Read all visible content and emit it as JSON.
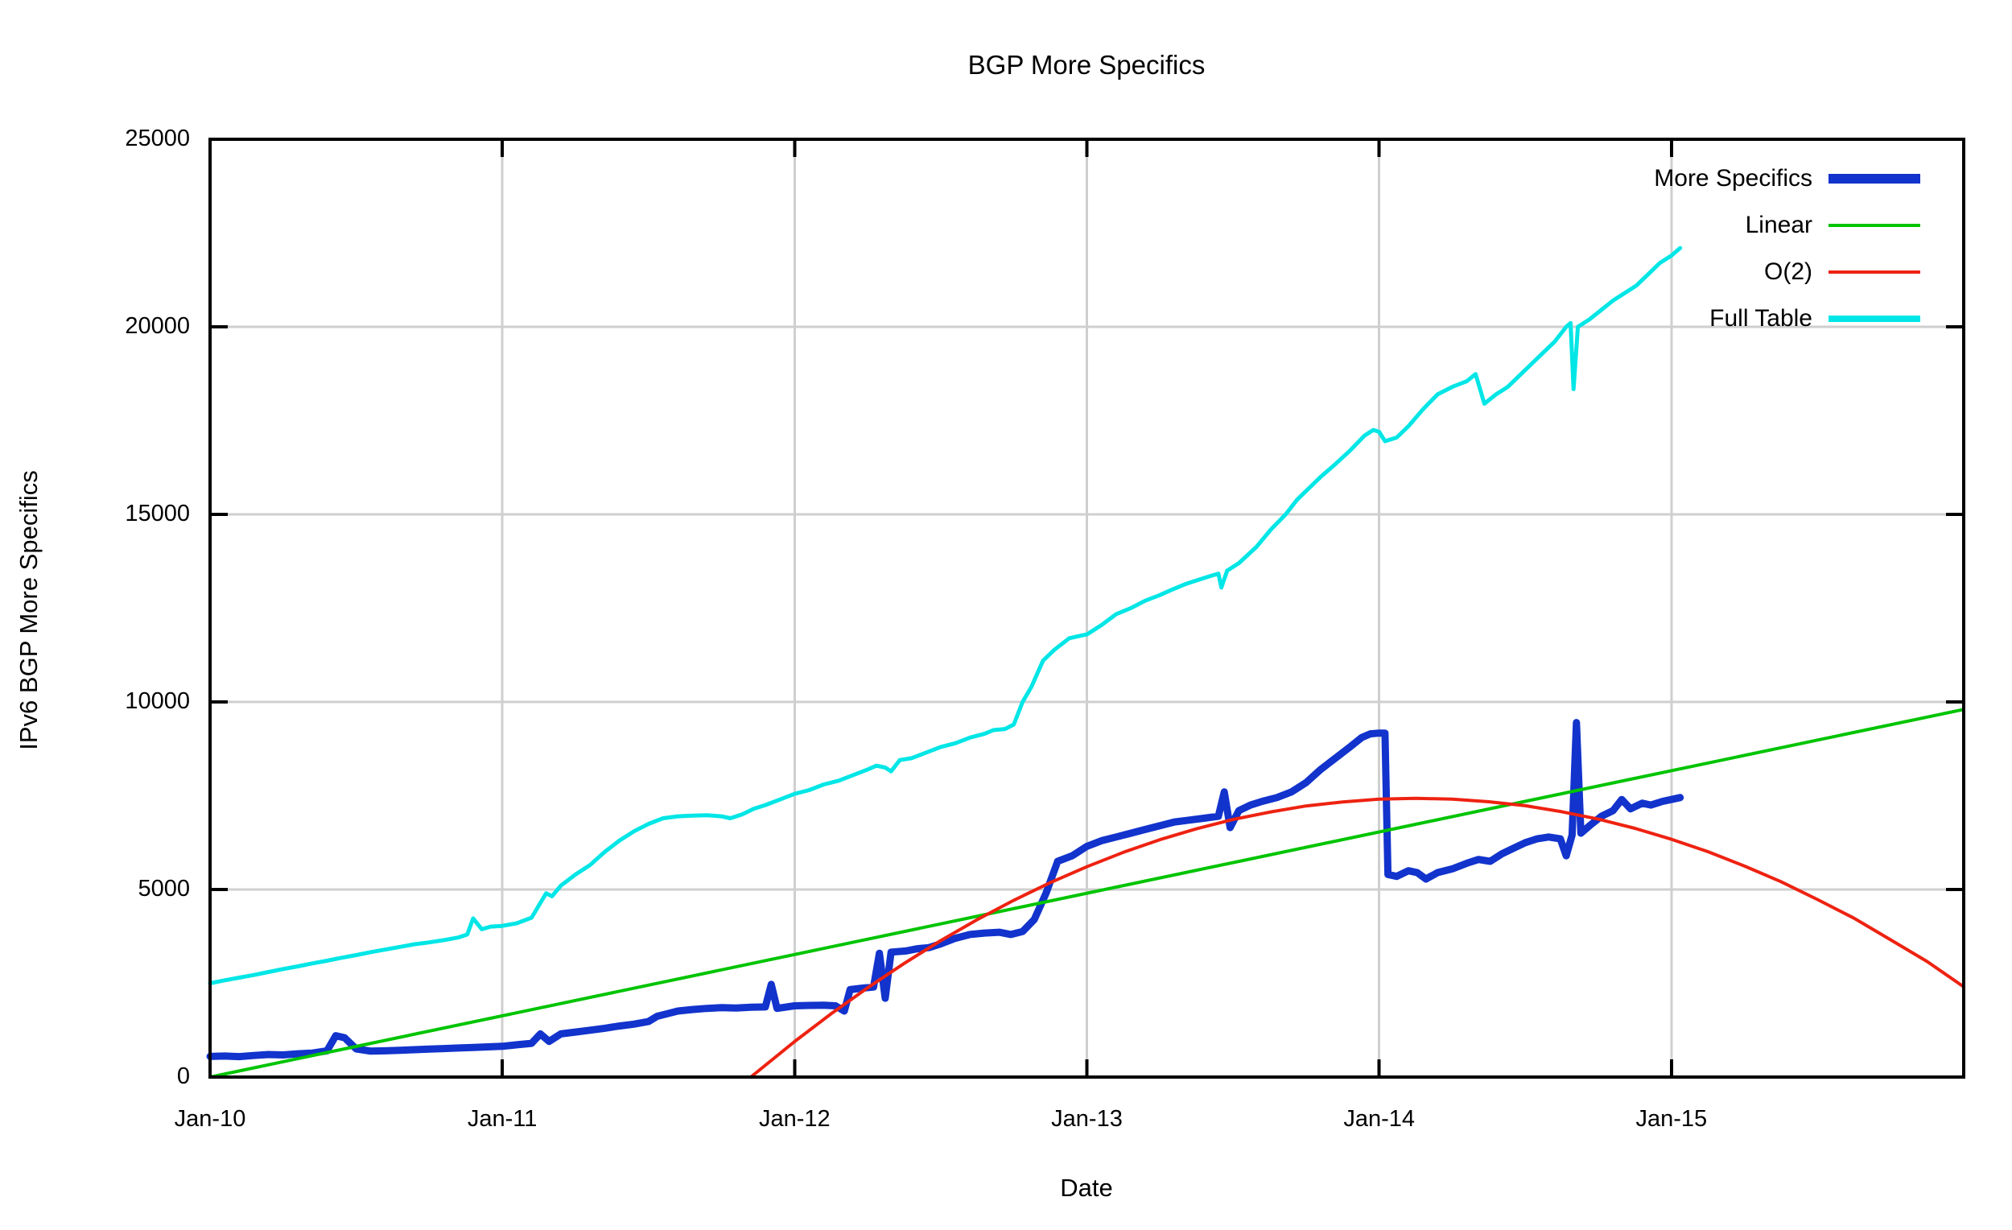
{
  "title": "BGP More Specifics",
  "axis": {
    "xlabel": "Date",
    "ylabel": "IPv6 BGP More Specifics",
    "x_tick_labels": [
      "Jan-10",
      "Jan-11",
      "Jan-12",
      "Jan-13",
      "Jan-14",
      "Jan-15"
    ],
    "x_tick_years": [
      2010,
      2011,
      2012,
      2013,
      2014,
      2015
    ],
    "y_tick_labels": [
      "0",
      "5000",
      "10000",
      "15000",
      "20000",
      "25000"
    ],
    "y_tick_values": [
      0,
      5000,
      10000,
      15000,
      20000,
      25000
    ],
    "x_range": [
      2010.0,
      2016.0
    ],
    "y_range": [
      0,
      25000
    ],
    "grid": true
  },
  "colors": {
    "more_specifics": "#1233cc",
    "linear": "#00c400",
    "o2": "#ee2211",
    "full_table": "#00e6e6",
    "grid": "#cfcfcf",
    "border": "#000000",
    "background": "#ffffff"
  },
  "legend": {
    "position": "top-right-inside",
    "entries": [
      {
        "label": "More Specifics",
        "series": "more_specifics",
        "color": "#1233cc",
        "thickness": 12
      },
      {
        "label": "Linear",
        "series": "linear",
        "color": "#00c400",
        "thickness": 4
      },
      {
        "label": "O(2)",
        "series": "o2",
        "color": "#ee2211",
        "thickness": 4
      },
      {
        "label": "Full Table",
        "series": "full_table",
        "color": "#00e6e6",
        "thickness": 8
      }
    ]
  },
  "chart_data": {
    "type": "line",
    "title": "BGP More Specifics",
    "xlabel": "Date",
    "ylabel": "IPv6 BGP More Specifics",
    "xlim": [
      2010.0,
      2016.0
    ],
    "ylim": [
      0,
      25000
    ],
    "x_unit": "decimal-year",
    "series": [
      {
        "name": "More Specifics",
        "color": "#1233cc",
        "width": 9,
        "points": [
          [
            2010.0,
            550
          ],
          [
            2010.05,
            560
          ],
          [
            2010.1,
            545
          ],
          [
            2010.15,
            575
          ],
          [
            2010.2,
            600
          ],
          [
            2010.25,
            590
          ],
          [
            2010.3,
            620
          ],
          [
            2010.35,
            640
          ],
          [
            2010.4,
            700
          ],
          [
            2010.43,
            1100
          ],
          [
            2010.46,
            1050
          ],
          [
            2010.5,
            750
          ],
          [
            2010.55,
            690
          ],
          [
            2010.6,
            700
          ],
          [
            2010.65,
            715
          ],
          [
            2010.7,
            730
          ],
          [
            2010.75,
            745
          ],
          [
            2010.8,
            760
          ],
          [
            2010.85,
            775
          ],
          [
            2010.9,
            790
          ],
          [
            2010.95,
            805
          ],
          [
            2011.0,
            820
          ],
          [
            2011.05,
            860
          ],
          [
            2011.1,
            900
          ],
          [
            2011.13,
            1150
          ],
          [
            2011.16,
            950
          ],
          [
            2011.2,
            1150
          ],
          [
            2011.25,
            1200
          ],
          [
            2011.3,
            1250
          ],
          [
            2011.35,
            1300
          ],
          [
            2011.4,
            1360
          ],
          [
            2011.45,
            1410
          ],
          [
            2011.5,
            1480
          ],
          [
            2011.53,
            1620
          ],
          [
            2011.57,
            1700
          ],
          [
            2011.6,
            1760
          ],
          [
            2011.65,
            1800
          ],
          [
            2011.7,
            1830
          ],
          [
            2011.75,
            1850
          ],
          [
            2011.8,
            1840
          ],
          [
            2011.85,
            1860
          ],
          [
            2011.9,
            1870
          ],
          [
            2011.92,
            2470
          ],
          [
            2011.94,
            1830
          ],
          [
            2012.0,
            1900
          ],
          [
            2012.05,
            1910
          ],
          [
            2012.1,
            1915
          ],
          [
            2012.14,
            1900
          ],
          [
            2012.17,
            1760
          ],
          [
            2012.19,
            2330
          ],
          [
            2012.23,
            2370
          ],
          [
            2012.27,
            2400
          ],
          [
            2012.29,
            3300
          ],
          [
            2012.31,
            2100
          ],
          [
            2012.33,
            3330
          ],
          [
            2012.38,
            3360
          ],
          [
            2012.42,
            3420
          ],
          [
            2012.46,
            3450
          ],
          [
            2012.5,
            3550
          ],
          [
            2012.55,
            3700
          ],
          [
            2012.6,
            3800
          ],
          [
            2012.65,
            3840
          ],
          [
            2012.7,
            3860
          ],
          [
            2012.74,
            3800
          ],
          [
            2012.78,
            3880
          ],
          [
            2012.82,
            4200
          ],
          [
            2012.86,
            4900
          ],
          [
            2012.9,
            5750
          ],
          [
            2012.95,
            5900
          ],
          [
            2013.0,
            6150
          ],
          [
            2013.05,
            6300
          ],
          [
            2013.1,
            6400
          ],
          [
            2013.15,
            6500
          ],
          [
            2013.2,
            6600
          ],
          [
            2013.25,
            6700
          ],
          [
            2013.3,
            6800
          ],
          [
            2013.35,
            6850
          ],
          [
            2013.4,
            6900
          ],
          [
            2013.45,
            6950
          ],
          [
            2013.47,
            7600
          ],
          [
            2013.49,
            6650
          ],
          [
            2013.52,
            7100
          ],
          [
            2013.56,
            7250
          ],
          [
            2013.6,
            7350
          ],
          [
            2013.65,
            7450
          ],
          [
            2013.7,
            7600
          ],
          [
            2013.75,
            7850
          ],
          [
            2013.8,
            8200
          ],
          [
            2013.85,
            8500
          ],
          [
            2013.9,
            8800
          ],
          [
            2013.94,
            9050
          ],
          [
            2013.97,
            9150
          ],
          [
            2014.0,
            9170
          ],
          [
            2014.02,
            9170
          ],
          [
            2014.03,
            5400
          ],
          [
            2014.06,
            5350
          ],
          [
            2014.1,
            5500
          ],
          [
            2014.13,
            5450
          ],
          [
            2014.16,
            5280
          ],
          [
            2014.2,
            5450
          ],
          [
            2014.25,
            5550
          ],
          [
            2014.3,
            5700
          ],
          [
            2014.34,
            5800
          ],
          [
            2014.38,
            5750
          ],
          [
            2014.42,
            5950
          ],
          [
            2014.46,
            6100
          ],
          [
            2014.5,
            6250
          ],
          [
            2014.54,
            6350
          ],
          [
            2014.58,
            6400
          ],
          [
            2014.62,
            6350
          ],
          [
            2014.64,
            5900
          ],
          [
            2014.66,
            6450
          ],
          [
            2014.675,
            9450
          ],
          [
            2014.69,
            6500
          ],
          [
            2014.72,
            6700
          ],
          [
            2014.76,
            6950
          ],
          [
            2014.8,
            7100
          ],
          [
            2014.83,
            7400
          ],
          [
            2014.86,
            7150
          ],
          [
            2014.9,
            7300
          ],
          [
            2014.93,
            7250
          ],
          [
            2014.97,
            7350
          ],
          [
            2015.0,
            7400
          ],
          [
            2015.03,
            7450
          ]
        ]
      },
      {
        "name": "Linear",
        "color": "#00c400",
        "width": 4,
        "points": [
          [
            2010.0,
            0
          ],
          [
            2016.0,
            9800
          ]
        ]
      },
      {
        "name": "O(2)",
        "color": "#ee2211",
        "width": 4,
        "points": [
          [
            2011.85,
            0
          ],
          [
            2012.0,
            946
          ],
          [
            2012.125,
            1686
          ],
          [
            2012.25,
            2380
          ],
          [
            2012.375,
            3031
          ],
          [
            2012.5,
            3637
          ],
          [
            2012.625,
            4197
          ],
          [
            2012.75,
            4713
          ],
          [
            2012.875,
            5184
          ],
          [
            2013.0,
            5607
          ],
          [
            2013.125,
            5992
          ],
          [
            2013.25,
            6328
          ],
          [
            2013.375,
            6618
          ],
          [
            2013.5,
            6868
          ],
          [
            2013.625,
            7063
          ],
          [
            2013.75,
            7227
          ],
          [
            2013.875,
            7334
          ],
          [
            2014.0,
            7408
          ],
          [
            2014.125,
            7429
          ],
          [
            2014.25,
            7409
          ],
          [
            2014.375,
            7340
          ],
          [
            2014.5,
            7233
          ],
          [
            2014.625,
            7073
          ],
          [
            2014.75,
            6876
          ],
          [
            2014.875,
            6630
          ],
          [
            2015.0,
            6340
          ],
          [
            2015.125,
            6009
          ],
          [
            2015.25,
            5625
          ],
          [
            2015.375,
            5208
          ],
          [
            2015.5,
            4732
          ],
          [
            2015.625,
            4233
          ],
          [
            2015.75,
            3658
          ],
          [
            2015.875,
            3079
          ],
          [
            2016.0,
            2406
          ]
        ]
      },
      {
        "name": "Full Table",
        "color": "#00e6e6",
        "width": 5,
        "points": [
          [
            2010.0,
            2500
          ],
          [
            2010.05,
            2580
          ],
          [
            2010.1,
            2650
          ],
          [
            2010.15,
            2720
          ],
          [
            2010.2,
            2800
          ],
          [
            2010.25,
            2880
          ],
          [
            2010.3,
            2950
          ],
          [
            2010.35,
            3030
          ],
          [
            2010.4,
            3100
          ],
          [
            2010.45,
            3180
          ],
          [
            2010.5,
            3250
          ],
          [
            2010.55,
            3330
          ],
          [
            2010.6,
            3400
          ],
          [
            2010.65,
            3470
          ],
          [
            2010.7,
            3540
          ],
          [
            2010.75,
            3590
          ],
          [
            2010.8,
            3650
          ],
          [
            2010.85,
            3720
          ],
          [
            2010.88,
            3800
          ],
          [
            2010.9,
            4230
          ],
          [
            2010.93,
            3940
          ],
          [
            2010.96,
            4010
          ],
          [
            2011.0,
            4030
          ],
          [
            2011.05,
            4100
          ],
          [
            2011.1,
            4250
          ],
          [
            2011.15,
            4900
          ],
          [
            2011.17,
            4820
          ],
          [
            2011.2,
            5100
          ],
          [
            2011.25,
            5400
          ],
          [
            2011.3,
            5650
          ],
          [
            2011.35,
            6000
          ],
          [
            2011.4,
            6300
          ],
          [
            2011.45,
            6550
          ],
          [
            2011.5,
            6750
          ],
          [
            2011.55,
            6900
          ],
          [
            2011.6,
            6950
          ],
          [
            2011.65,
            6970
          ],
          [
            2011.7,
            6980
          ],
          [
            2011.75,
            6950
          ],
          [
            2011.78,
            6900
          ],
          [
            2011.82,
            7000
          ],
          [
            2011.86,
            7150
          ],
          [
            2011.9,
            7250
          ],
          [
            2011.95,
            7400
          ],
          [
            2012.0,
            7550
          ],
          [
            2012.05,
            7650
          ],
          [
            2012.1,
            7800
          ],
          [
            2012.15,
            7900
          ],
          [
            2012.2,
            8050
          ],
          [
            2012.25,
            8200
          ],
          [
            2012.28,
            8300
          ],
          [
            2012.31,
            8250
          ],
          [
            2012.33,
            8150
          ],
          [
            2012.36,
            8450
          ],
          [
            2012.4,
            8500
          ],
          [
            2012.45,
            8650
          ],
          [
            2012.5,
            8800
          ],
          [
            2012.55,
            8900
          ],
          [
            2012.6,
            9050
          ],
          [
            2012.65,
            9150
          ],
          [
            2012.68,
            9250
          ],
          [
            2012.72,
            9280
          ],
          [
            2012.75,
            9400
          ],
          [
            2012.78,
            10000
          ],
          [
            2012.81,
            10400
          ],
          [
            2012.85,
            11100
          ],
          [
            2012.89,
            11400
          ],
          [
            2012.94,
            11700
          ],
          [
            2013.0,
            11800
          ],
          [
            2013.05,
            12050
          ],
          [
            2013.1,
            12340
          ],
          [
            2013.15,
            12500
          ],
          [
            2013.2,
            12700
          ],
          [
            2013.25,
            12850
          ],
          [
            2013.29,
            12990
          ],
          [
            2013.34,
            13150
          ],
          [
            2013.38,
            13250
          ],
          [
            2013.42,
            13350
          ],
          [
            2013.45,
            13420
          ],
          [
            2013.46,
            13050
          ],
          [
            2013.48,
            13500
          ],
          [
            2013.52,
            13700
          ],
          [
            2013.58,
            14130
          ],
          [
            2013.63,
            14600
          ],
          [
            2013.68,
            15000
          ],
          [
            2013.72,
            15400
          ],
          [
            2013.76,
            15700
          ],
          [
            2013.8,
            16000
          ],
          [
            2013.85,
            16340
          ],
          [
            2013.9,
            16700
          ],
          [
            2013.95,
            17100
          ],
          [
            2013.98,
            17250
          ],
          [
            2014.0,
            17200
          ],
          [
            2014.02,
            16950
          ],
          [
            2014.06,
            17050
          ],
          [
            2014.1,
            17350
          ],
          [
            2014.15,
            17800
          ],
          [
            2014.2,
            18200
          ],
          [
            2014.25,
            18400
          ],
          [
            2014.3,
            18550
          ],
          [
            2014.33,
            18740
          ],
          [
            2014.36,
            17950
          ],
          [
            2014.4,
            18200
          ],
          [
            2014.44,
            18400
          ],
          [
            2014.48,
            18700
          ],
          [
            2014.52,
            19000
          ],
          [
            2014.56,
            19300
          ],
          [
            2014.6,
            19600
          ],
          [
            2014.64,
            20000
          ],
          [
            2014.655,
            20100
          ],
          [
            2014.665,
            18340
          ],
          [
            2014.68,
            20000
          ],
          [
            2014.72,
            20200
          ],
          [
            2014.76,
            20450
          ],
          [
            2014.8,
            20700
          ],
          [
            2014.84,
            20900
          ],
          [
            2014.88,
            21100
          ],
          [
            2014.92,
            21400
          ],
          [
            2014.96,
            21700
          ],
          [
            2015.0,
            21900
          ],
          [
            2015.03,
            22100
          ]
        ]
      }
    ]
  }
}
